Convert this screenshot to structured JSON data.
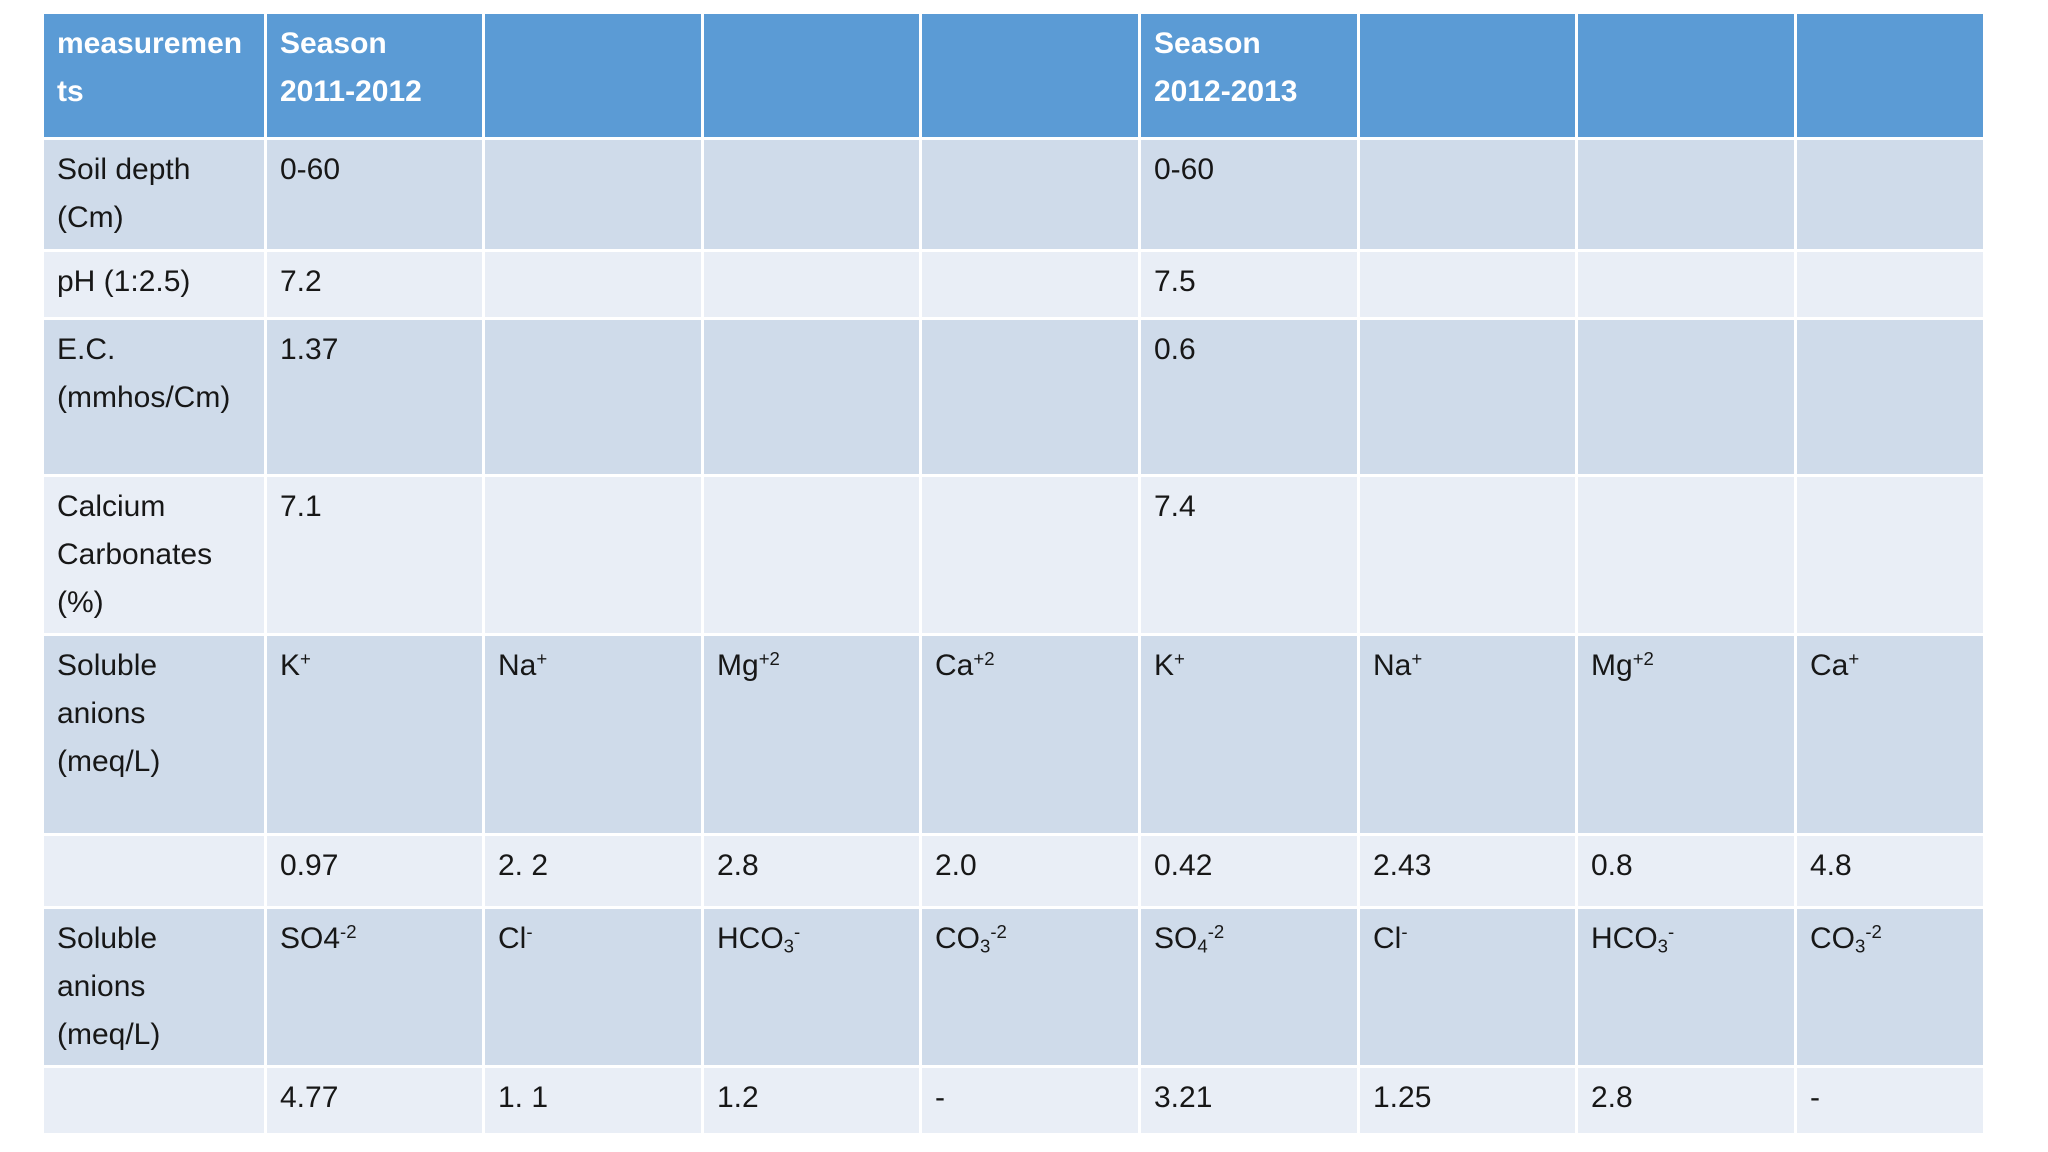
{
  "slide": {
    "table": {
      "header_cells": [
        "measurements",
        "Season 2011-2012",
        "",
        "",
        "",
        "Season 2012-2013",
        "",
        "",
        ""
      ],
      "rows": [
        {
          "cells": [
            "Soil depth (Cm)",
            "0-60",
            "",
            "",
            "",
            "0-60",
            "",
            "",
            ""
          ]
        },
        {
          "cells": [
            "pH (1:2.5)",
            "7.2",
            "",
            "",
            "",
            "7.5",
            "",
            "",
            ""
          ]
        },
        {
          "cells": [
            "E.C. (mmhos/Cm)",
            "1.37",
            "",
            "",
            "",
            "0.6",
            "",
            "",
            ""
          ]
        },
        {
          "cells": [
            "Calcium Carbonates (%)",
            "7.1",
            "",
            "",
            "",
            "7.4",
            "",
            "",
            ""
          ]
        },
        {
          "cells": [
            "Soluble anions (meq/L)",
            "K^+",
            "Na^+",
            "Mg^+2",
            "Ca^+2",
            "K^+",
            "Na^+",
            "Mg^+2",
            "Ca^+"
          ]
        },
        {
          "cells": [
            "",
            "0.97",
            "2. 2",
            "2.8",
            "2.0",
            "0.42",
            "2.43",
            "0.8",
            "4.8"
          ]
        },
        {
          "cells": [
            "Soluble anions (meq/L)",
            "SO4^-2",
            "Cl^-",
            "HCO_3^-",
            "CO_3^-2",
            "SO_4^-2",
            "Cl^-",
            "HCO_3^-",
            "CO_3^-2"
          ]
        },
        {
          "cells": [
            "",
            "4.77",
            "1. 1",
            "1.2",
            "-",
            "3.21",
            "1.25",
            "2.8",
            "-"
          ]
        }
      ],
      "colors": {
        "header_bg": "#5b9bd5",
        "header_text": "#ffffff",
        "band_dark": "#cfdbea",
        "band_light": "#e9eef6",
        "grid": "#ffffff",
        "text": "#171717"
      }
    }
  }
}
